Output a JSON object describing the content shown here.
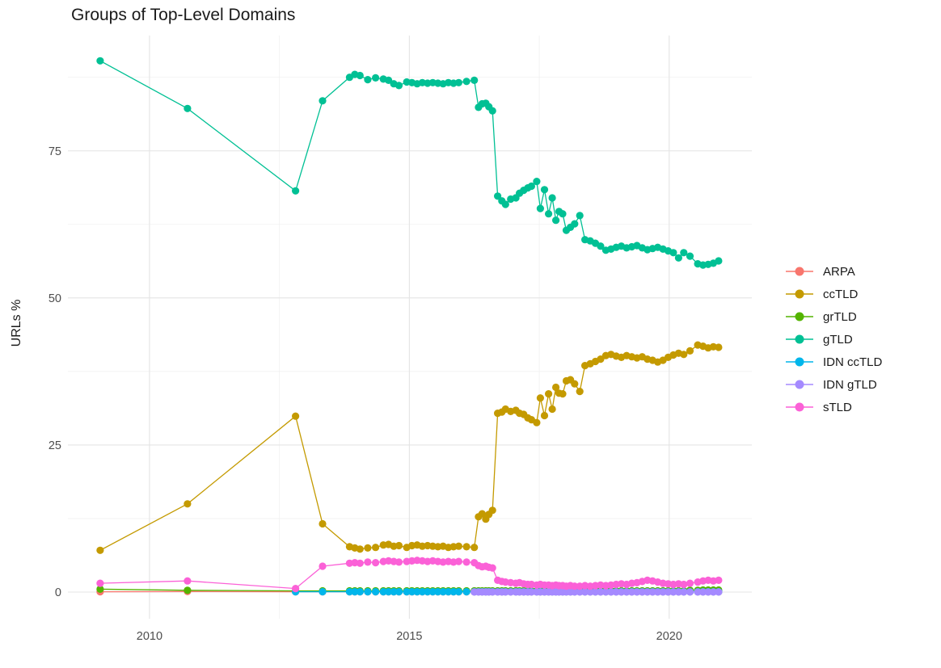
{
  "page": {
    "title": "Groups of Top-Level Domains"
  },
  "chart_data": {
    "type": "line",
    "title": "Groups of Top-Level Domains",
    "xlabel": "",
    "ylabel": "URLs %",
    "grid": true,
    "legend_position": "right",
    "x_ticks": [
      2010,
      2015,
      2020
    ],
    "x_tick_labels": [
      "2010",
      "2015",
      "2020"
    ],
    "x_minor": [
      2012.5,
      2017.5
    ],
    "y_ticks": [
      0,
      25,
      50,
      75
    ],
    "y_tick_labels": [
      "0",
      "25",
      "50",
      "75"
    ],
    "y_minor": [
      12.5,
      37.5,
      62.5,
      87.5
    ],
    "xlim": [
      2008.43,
      2021.59
    ],
    "ylim": [
      -4.53,
      94.6
    ],
    "x": [
      2009.05,
      2010.73,
      2012.81,
      2013.33,
      2013.85,
      2013.95,
      2014.05,
      2014.2,
      2014.35,
      2014.5,
      2014.6,
      2014.7,
      2014.8,
      2014.95,
      2015.05,
      2015.15,
      2015.25,
      2015.35,
      2015.45,
      2015.55,
      2015.65,
      2015.75,
      2015.85,
      2015.95,
      2016.1,
      2016.25,
      2016.33,
      2016.4,
      2016.47,
      2016.53,
      2016.6,
      2016.7,
      2016.78,
      2016.85,
      2016.95,
      2017.05,
      2017.12,
      2017.2,
      2017.28,
      2017.35,
      2017.45,
      2017.52,
      2017.6,
      2017.68,
      2017.75,
      2017.82,
      2017.88,
      2017.95,
      2018.02,
      2018.1,
      2018.18,
      2018.28,
      2018.38,
      2018.48,
      2018.58,
      2018.68,
      2018.78,
      2018.88,
      2018.98,
      2019.08,
      2019.18,
      2019.28,
      2019.38,
      2019.48,
      2019.58,
      2019.68,
      2019.78,
      2019.88,
      2019.98,
      2020.08,
      2020.18,
      2020.28,
      2020.4,
      2020.55,
      2020.65,
      2020.75,
      2020.85,
      2020.95
    ],
    "series": [
      {
        "name": "ARPA",
        "color": "#F8766D",
        "y": [
          0.05,
          0.1,
          0.05,
          0.05,
          0.05,
          0.05,
          0.05,
          0.05,
          0.05,
          0.05,
          0.05,
          0.05,
          0.05,
          0.05,
          0.05,
          0.05,
          0.05,
          0.05,
          0.05,
          0.05,
          0.05,
          0.05,
          0.05,
          0.05,
          0.05,
          0.05,
          0.05,
          0.05,
          0.05,
          0.05,
          0.05,
          0.05,
          0.05,
          0.05,
          0.05,
          0.05,
          0.05,
          0.05,
          0.05,
          0.05,
          0.05,
          0.05,
          0.05,
          0.05,
          0.05,
          0.05,
          0.05,
          0.05,
          0.05,
          0.05,
          0.05,
          0.05,
          0.05,
          0.05,
          0.05,
          0.05,
          0.05,
          0.05,
          0.05,
          0.05,
          0.05,
          0.05,
          0.05,
          0.05,
          0.05,
          0.05,
          0.05,
          0.05,
          0.05,
          0.05,
          0.05,
          0.05,
          0.05,
          0.05,
          0.05,
          0.05,
          0.05,
          0.05
        ]
      },
      {
        "name": "ccTLD",
        "color": "#C49A00",
        "y": [
          7.1,
          15.0,
          29.9,
          11.6,
          7.7,
          7.5,
          7.3,
          7.5,
          7.6,
          8.0,
          8.1,
          7.8,
          7.9,
          7.6,
          7.9,
          8.0,
          7.8,
          7.9,
          7.8,
          7.7,
          7.8,
          7.6,
          7.7,
          7.8,
          7.7,
          7.6,
          12.8,
          13.3,
          12.4,
          13.2,
          13.9,
          30.4,
          30.6,
          31.1,
          30.7,
          30.9,
          30.4,
          30.2,
          29.6,
          29.3,
          28.8,
          33.0,
          30.0,
          33.7,
          31.1,
          34.8,
          33.8,
          33.7,
          35.9,
          36.1,
          35.4,
          34.1,
          38.5,
          38.8,
          39.2,
          39.6,
          40.2,
          40.4,
          40.1,
          39.9,
          40.2,
          40.0,
          39.8,
          40.0,
          39.6,
          39.4,
          39.1,
          39.4,
          39.9,
          40.3,
          40.6,
          40.4,
          41.0,
          42.0,
          41.8,
          41.5,
          41.7,
          41.6
        ]
      },
      {
        "name": "grTLD",
        "color": "#53B400",
        "y": [
          0.5,
          0.3,
          0.2,
          0.2,
          0.2,
          0.2,
          0.2,
          0.2,
          0.2,
          0.2,
          0.2,
          0.2,
          0.2,
          0.2,
          0.2,
          0.2,
          0.2,
          0.2,
          0.2,
          0.2,
          0.2,
          0.2,
          0.2,
          0.2,
          0.2,
          0.2,
          0.2,
          0.2,
          0.2,
          0.2,
          0.2,
          0.2,
          0.2,
          0.2,
          0.2,
          0.2,
          0.2,
          0.2,
          0.2,
          0.2,
          0.2,
          0.2,
          0.2,
          0.2,
          0.2,
          0.2,
          0.2,
          0.2,
          0.2,
          0.2,
          0.2,
          0.2,
          0.2,
          0.2,
          0.2,
          0.2,
          0.2,
          0.2,
          0.2,
          0.2,
          0.2,
          0.2,
          0.2,
          0.2,
          0.2,
          0.2,
          0.2,
          0.2,
          0.2,
          0.2,
          0.2,
          0.2,
          0.3,
          0.3,
          0.35,
          0.35,
          0.35,
          0.35
        ]
      },
      {
        "name": "gTLD",
        "color": "#00C094",
        "y": [
          90.3,
          82.2,
          68.2,
          83.5,
          87.5,
          88.0,
          87.8,
          87.1,
          87.4,
          87.2,
          87.0,
          86.4,
          86.1,
          86.7,
          86.6,
          86.4,
          86.6,
          86.5,
          86.6,
          86.5,
          86.4,
          86.6,
          86.5,
          86.6,
          86.8,
          87.0,
          82.4,
          83.0,
          83.1,
          82.5,
          81.8,
          67.3,
          66.5,
          65.9,
          66.8,
          67.0,
          67.8,
          68.3,
          68.7,
          69.0,
          69.8,
          65.2,
          68.4,
          64.3,
          67.0,
          63.2,
          64.7,
          64.3,
          61.5,
          62.0,
          62.6,
          64.0,
          59.9,
          59.7,
          59.3,
          58.8,
          58.1,
          58.3,
          58.6,
          58.8,
          58.5,
          58.7,
          58.9,
          58.5,
          58.2,
          58.4,
          58.6,
          58.3,
          58.0,
          57.7,
          56.8,
          57.7,
          57.1,
          55.8,
          55.6,
          55.7,
          55.9,
          56.3
        ]
      },
      {
        "name": "IDN ccTLD",
        "color": "#00B6EB",
        "y": [
          null,
          null,
          0.05,
          0.05,
          0.05,
          0.05,
          0.05,
          0.05,
          0.05,
          0.05,
          0.05,
          0.05,
          0.05,
          0.05,
          0.05,
          0.05,
          0.05,
          0.05,
          0.05,
          0.05,
          0.05,
          0.05,
          0.05,
          0.05,
          0.05,
          0.05,
          0.05,
          0.05,
          0.05,
          0.05,
          0.05,
          0.05,
          0.05,
          0.05,
          0.05,
          0.05,
          0.05,
          0.05,
          0.05,
          0.05,
          0.05,
          0.05,
          0.05,
          0.05,
          0.05,
          0.05,
          0.05,
          0.05,
          0.05,
          0.05,
          0.05,
          0.05,
          0.05,
          0.05,
          0.05,
          0.05,
          0.05,
          0.05,
          0.05,
          0.05,
          0.05,
          0.05,
          0.05,
          0.05,
          0.05,
          0.05,
          0.05,
          0.05,
          0.05,
          0.05,
          0.05,
          0.05,
          0.05,
          0.05,
          0.05,
          0.05,
          0.05,
          0.05
        ]
      },
      {
        "name": "IDN gTLD",
        "color": "#A58AFF",
        "y": [
          null,
          null,
          null,
          null,
          null,
          null,
          null,
          null,
          null,
          null,
          null,
          null,
          null,
          null,
          null,
          null,
          null,
          null,
          null,
          null,
          null,
          null,
          null,
          null,
          null,
          0.02,
          0.02,
          0.02,
          0.02,
          0.02,
          0.02,
          0.02,
          0.02,
          0.02,
          0.02,
          0.02,
          0.02,
          0.02,
          0.02,
          0.02,
          0.02,
          0.02,
          0.02,
          0.02,
          0.02,
          0.02,
          0.02,
          0.02,
          0.02,
          0.02,
          0.02,
          0.02,
          0.02,
          0.02,
          0.02,
          0.02,
          0.02,
          0.02,
          0.02,
          0.02,
          0.02,
          0.02,
          0.02,
          0.02,
          0.02,
          0.02,
          0.02,
          0.02,
          0.02,
          0.02,
          0.02,
          0.02,
          0.02,
          0.02,
          0.02,
          0.02,
          0.02,
          0.02
        ]
      },
      {
        "name": "sTLD",
        "color": "#FB61D7",
        "y": [
          1.5,
          1.9,
          0.6,
          4.4,
          4.9,
          5.0,
          4.9,
          5.1,
          5.0,
          5.2,
          5.3,
          5.2,
          5.1,
          5.2,
          5.3,
          5.4,
          5.3,
          5.2,
          5.3,
          5.2,
          5.1,
          5.2,
          5.1,
          5.2,
          5.1,
          5.0,
          4.5,
          4.3,
          4.4,
          4.2,
          4.1,
          2.0,
          1.8,
          1.7,
          1.6,
          1.5,
          1.6,
          1.4,
          1.3,
          1.3,
          1.2,
          1.3,
          1.2,
          1.2,
          1.1,
          1.2,
          1.1,
          1.1,
          1.0,
          1.1,
          1.0,
          1.0,
          1.1,
          1.0,
          1.1,
          1.2,
          1.1,
          1.2,
          1.3,
          1.4,
          1.3,
          1.5,
          1.6,
          1.8,
          2.0,
          1.9,
          1.7,
          1.5,
          1.4,
          1.3,
          1.4,
          1.3,
          1.5,
          1.7,
          1.9,
          2.0,
          1.9,
          2.0
        ]
      }
    ]
  },
  "style": {
    "grid_major_color": "#e4e4e4",
    "grid_minor_color": "#efefef",
    "background": "#ffffff"
  }
}
